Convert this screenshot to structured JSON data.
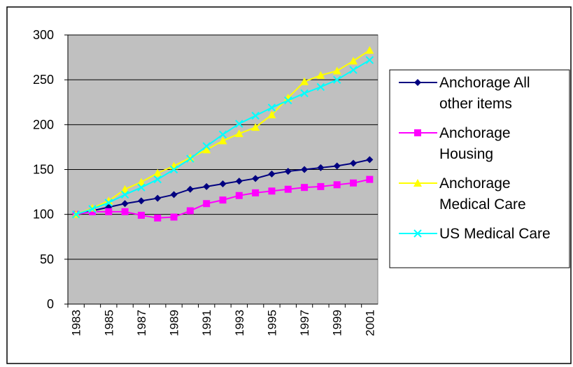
{
  "chart_data": {
    "type": "line",
    "categories": [
      "1983",
      null,
      "1985",
      null,
      "1987",
      null,
      "1989",
      null,
      "1991",
      null,
      "1993",
      null,
      "1995",
      null,
      "1997",
      null,
      "1999",
      null,
      "2001"
    ],
    "series": [
      {
        "name": "Anchorage All other items",
        "color": "#000080",
        "marker": "diamond",
        "values": [
          100,
          104,
          108,
          112,
          115,
          118,
          122,
          128,
          131,
          134,
          137,
          140,
          145,
          148,
          150,
          152,
          154,
          157,
          161
        ]
      },
      {
        "name": "Anchorage Housing",
        "color": "#ff00ff",
        "marker": "square",
        "values": [
          100,
          103,
          103,
          103,
          99,
          96,
          97,
          104,
          112,
          116,
          121,
          124,
          126,
          128,
          130,
          131,
          133,
          135,
          139
        ]
      },
      {
        "name": "Anchorage Medical Care",
        "color": "#ffff00",
        "marker": "triangle",
        "values": [
          100,
          107,
          115,
          128,
          136,
          146,
          154,
          163,
          172,
          182,
          190,
          197,
          211,
          230,
          248,
          255,
          260,
          271,
          283
        ]
      },
      {
        "name": "US Medical Care",
        "color": "#00ffff",
        "marker": "x",
        "values": [
          100,
          106,
          113,
          122,
          130,
          139,
          150,
          162,
          176,
          189,
          201,
          210,
          219,
          227,
          235,
          242,
          250,
          261,
          272
        ]
      }
    ],
    "ylim": [
      0,
      300
    ],
    "yticks": [
      0,
      50,
      100,
      150,
      200,
      250,
      300
    ],
    "grid": true,
    "legend": "right",
    "plot_background": "#c0c0c0"
  }
}
